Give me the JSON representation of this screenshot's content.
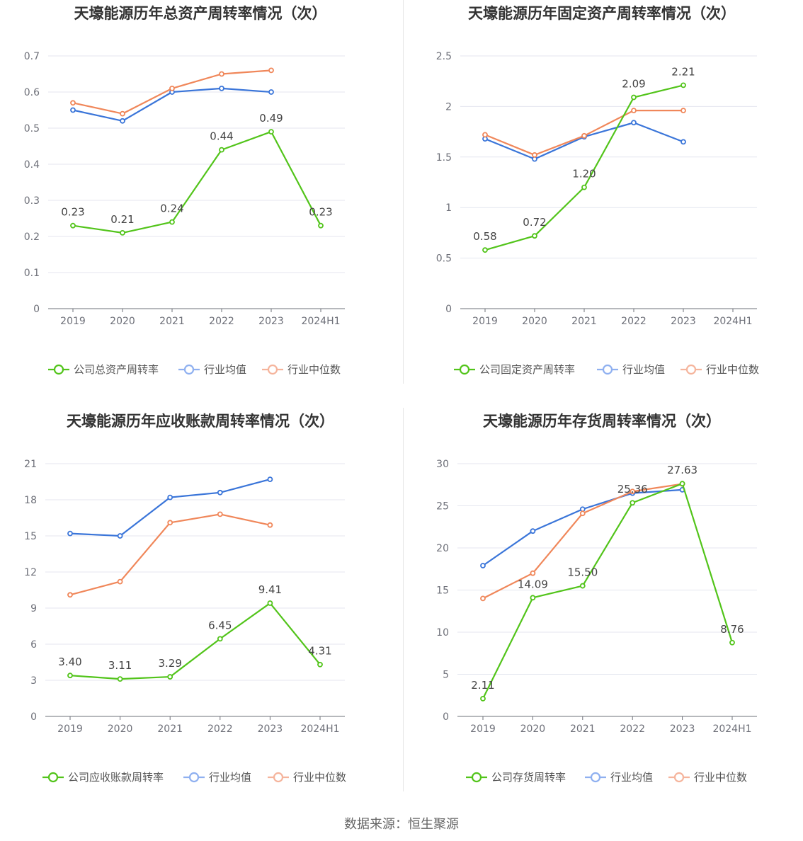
{
  "footer": {
    "source": "数据来源：恒生聚源"
  },
  "colors": {
    "company": "#52c41a",
    "avg": "#3a75d9",
    "median": "#f0875a",
    "avg_legend": "#8fb0f0",
    "median_legend": "#f5b49c"
  },
  "chart_data": [
    {
      "type": "line",
      "title": "天壕能源历年总资产周转率情况（次）",
      "categories": [
        "2019",
        "2020",
        "2021",
        "2022",
        "2023",
        "2024H1"
      ],
      "ylim": [
        0,
        0.7
      ],
      "yticks": [
        0,
        0.1,
        0.2,
        0.3,
        0.4,
        0.5,
        0.6,
        0.7
      ],
      "ytick_labels": [
        "0",
        "0.1",
        "0.2",
        "0.3",
        "0.4",
        "0.5",
        "0.6",
        "0.7"
      ],
      "series": [
        {
          "name": "公司总资产周转率",
          "key": "company",
          "values": [
            0.23,
            0.21,
            0.24,
            0.44,
            0.49,
            0.23
          ],
          "labels": [
            "0.23",
            "0.21",
            "0.24",
            "0.44",
            "0.49",
            "0.23"
          ]
        },
        {
          "name": "行业均值",
          "key": "avg",
          "values": [
            0.55,
            0.52,
            0.6,
            0.61,
            0.6,
            null
          ]
        },
        {
          "name": "行业中位数",
          "key": "median",
          "values": [
            0.57,
            0.54,
            0.61,
            0.65,
            0.66,
            null
          ]
        }
      ]
    },
    {
      "type": "line",
      "title": "天壕能源历年固定资产周转率情况（次）",
      "categories": [
        "2019",
        "2020",
        "2021",
        "2022",
        "2023",
        "2024H1"
      ],
      "ylim": [
        0,
        2.5
      ],
      "yticks": [
        0,
        0.5,
        1,
        1.5,
        2,
        2.5
      ],
      "ytick_labels": [
        "0",
        "0.5",
        "1",
        "1.5",
        "2",
        "2.5"
      ],
      "series": [
        {
          "name": "公司固定资产周转率",
          "key": "company",
          "values": [
            0.58,
            0.72,
            1.2,
            2.09,
            2.21,
            null
          ],
          "labels": [
            "0.58",
            "0.72",
            "1.20",
            "2.09",
            "2.21",
            ""
          ]
        },
        {
          "name": "行业均值",
          "key": "avg",
          "values": [
            1.68,
            1.48,
            1.7,
            1.84,
            1.65,
            null
          ]
        },
        {
          "name": "行业中位数",
          "key": "median",
          "values": [
            1.72,
            1.52,
            1.71,
            1.96,
            1.96,
            null
          ]
        }
      ]
    },
    {
      "type": "line",
      "title": "天壕能源历年应收账款周转率情况（次）",
      "categories": [
        "2019",
        "2020",
        "2021",
        "2022",
        "2023",
        "2024H1"
      ],
      "ylim": [
        0,
        21
      ],
      "yticks": [
        0,
        3,
        6,
        9,
        12,
        15,
        18,
        21
      ],
      "ytick_labels": [
        "0",
        "3",
        "6",
        "9",
        "12",
        "15",
        "18",
        "21"
      ],
      "series": [
        {
          "name": "公司应收账款周转率",
          "key": "company",
          "values": [
            3.4,
            3.11,
            3.29,
            6.45,
            9.41,
            4.31
          ],
          "labels": [
            "3.40",
            "3.11",
            "3.29",
            "6.45",
            "9.41",
            "4.31"
          ]
        },
        {
          "name": "行业均值",
          "key": "avg",
          "values": [
            15.2,
            15.0,
            18.2,
            18.6,
            19.7,
            null
          ]
        },
        {
          "name": "行业中位数",
          "key": "median",
          "values": [
            10.1,
            11.2,
            16.1,
            16.8,
            15.9,
            null
          ]
        }
      ]
    },
    {
      "type": "line",
      "title": "天壕能源历年存货周转率情况（次）",
      "categories": [
        "2019",
        "2020",
        "2021",
        "2022",
        "2023",
        "2024H1"
      ],
      "ylim": [
        0,
        30
      ],
      "yticks": [
        0,
        5,
        10,
        15,
        20,
        25,
        30
      ],
      "ytick_labels": [
        "0",
        "5",
        "10",
        "15",
        "20",
        "25",
        "30"
      ],
      "series": [
        {
          "name": "公司存货周转率",
          "key": "company",
          "values": [
            2.11,
            14.09,
            15.5,
            25.36,
            27.63,
            8.76
          ],
          "labels": [
            "2.11",
            "14.09",
            "15.50",
            "25.36",
            "27.63",
            "8.76"
          ]
        },
        {
          "name": "行业均值",
          "key": "avg",
          "values": [
            17.9,
            22.0,
            24.6,
            26.5,
            26.9,
            null
          ]
        },
        {
          "name": "行业中位数",
          "key": "median",
          "values": [
            14.0,
            17.0,
            24.1,
            26.7,
            27.6,
            null
          ]
        }
      ]
    }
  ]
}
